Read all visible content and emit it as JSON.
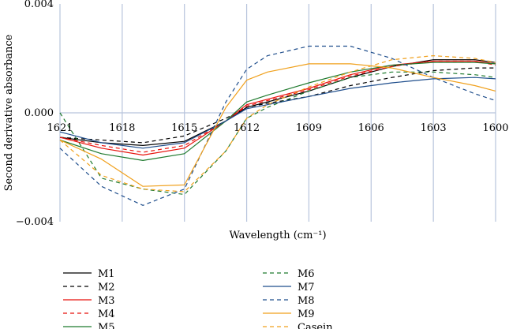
{
  "chart_data": {
    "type": "line",
    "title": "",
    "xlabel": "Wavelength (cm⁻¹)",
    "ylabel": "Second derivative absorbance",
    "xlim": [
      1621,
      1600
    ],
    "ylim": [
      -0.004,
      0.004
    ],
    "x_ticks": [
      1621,
      1618,
      1615,
      1612,
      1609,
      1606,
      1603,
      1600
    ],
    "x_tick_labels": [
      "1621",
      "1618",
      "1615",
      "1612",
      "1609",
      "1606",
      "1603",
      "1600"
    ],
    "y_ticks": [
      0.004,
      0.0,
      -0.004
    ],
    "y_tick_labels": [
      "0.004",
      "0.000",
      "−0.004"
    ],
    "grid": "vertical",
    "legend_position": "bottom",
    "x": [
      1621,
      1619,
      1617,
      1615,
      1613,
      1612,
      1611,
      1609,
      1607,
      1605,
      1603,
      1601,
      1600
    ],
    "series": [
      {
        "name": "M1",
        "color": "#000000",
        "dash": "solid",
        "values": [
          -0.0009,
          -0.0011,
          -0.0012,
          -0.00105,
          -0.0003,
          0.0002,
          0.0004,
          0.0008,
          0.0013,
          0.0017,
          0.00195,
          0.00195,
          0.00185
        ]
      },
      {
        "name": "M2",
        "color": "#000000",
        "dash": "dashed",
        "values": [
          -0.0009,
          -0.001,
          -0.0011,
          -0.00085,
          -0.0002,
          0.0002,
          0.00035,
          0.0006,
          0.001,
          0.0013,
          0.00155,
          0.00165,
          0.00165
        ]
      },
      {
        "name": "M3",
        "color": "#e8120c",
        "dash": "solid",
        "values": [
          -0.0009,
          -0.0013,
          -0.00155,
          -0.0013,
          -0.0003,
          0.0003,
          0.0005,
          0.0009,
          0.0014,
          0.00175,
          0.0019,
          0.0019,
          0.0018
        ]
      },
      {
        "name": "M4",
        "color": "#e8120c",
        "dash": "dashed",
        "values": [
          -0.0009,
          -0.0012,
          -0.00145,
          -0.0012,
          -0.0003,
          0.00025,
          0.00045,
          0.00085,
          0.00135,
          0.0017,
          0.0019,
          0.0019,
          0.00175
        ]
      },
      {
        "name": "M5",
        "color": "#1f7a2e",
        "dash": "solid",
        "values": [
          -0.001,
          -0.0015,
          -0.00175,
          -0.0015,
          -0.0003,
          0.0004,
          0.00065,
          0.0011,
          0.0015,
          0.00175,
          0.00185,
          0.00185,
          0.0018
        ]
      },
      {
        "name": "M6",
        "color": "#1f7a2e",
        "dash": "dashed",
        "values": [
          0.0,
          -0.0024,
          -0.0028,
          -0.003,
          -0.0014,
          -0.0002,
          0.0002,
          0.0008,
          0.0013,
          0.0015,
          0.0015,
          0.0014,
          0.0013
        ]
      },
      {
        "name": "M7",
        "color": "#1f4e8c",
        "dash": "solid",
        "values": [
          -0.0007,
          -0.0011,
          -0.0013,
          -0.0011,
          -0.0003,
          0.00015,
          0.0003,
          0.0006,
          0.0009,
          0.0011,
          0.00125,
          0.0013,
          0.00125
        ]
      },
      {
        "name": "M8",
        "color": "#1f4e8c",
        "dash": "dashed",
        "values": [
          -0.0013,
          -0.0027,
          -0.0034,
          -0.0028,
          0.0004,
          0.0016,
          0.0021,
          0.00245,
          0.00245,
          0.002,
          0.0013,
          0.0007,
          0.00045
        ]
      },
      {
        "name": "M9",
        "color": "#f0a01c",
        "dash": "solid",
        "values": [
          -0.001,
          -0.0017,
          -0.0027,
          -0.00265,
          0.0002,
          0.0012,
          0.0015,
          0.0018,
          0.0018,
          0.00165,
          0.0013,
          0.001,
          0.0008
        ]
      },
      {
        "name": "Casein",
        "color": "#f0a01c",
        "dash": "dashed",
        "values": [
          -0.001,
          -0.0023,
          -0.0028,
          -0.0029,
          -0.0014,
          -0.0002,
          0.0003,
          0.00095,
          0.0015,
          0.00195,
          0.0021,
          0.002,
          0.00185
        ]
      }
    ]
  }
}
